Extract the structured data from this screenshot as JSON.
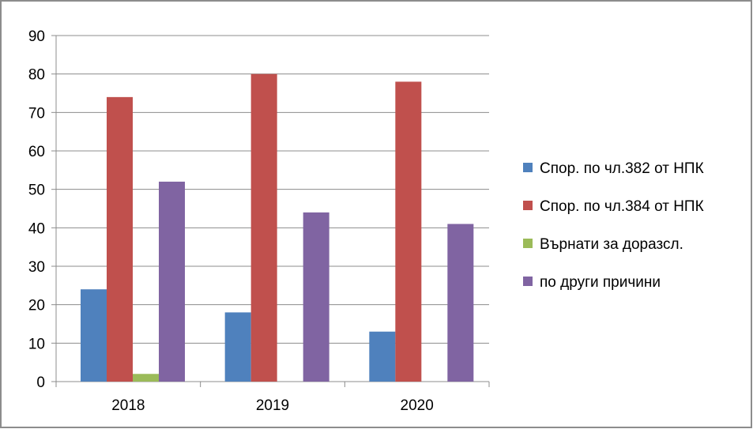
{
  "chart_data": {
    "type": "bar",
    "title": "",
    "xlabel": "",
    "ylabel": "",
    "categories": [
      "2018",
      "2019",
      "2020"
    ],
    "ylim": [
      0,
      90
    ],
    "yticks": [
      0,
      10,
      20,
      30,
      40,
      50,
      60,
      70,
      80,
      90
    ],
    "grid": true,
    "legend_position": "right",
    "series": [
      {
        "name": "Спор. по чл.382 от НПК",
        "color": "#4F81BD",
        "values": [
          24,
          18,
          13
        ]
      },
      {
        "name": "Спор. по чл.384 от НПК",
        "color": "#C0504D",
        "values": [
          74,
          80,
          78
        ]
      },
      {
        "name": "Върнати за доразсл.",
        "color": "#9BBB59",
        "values": [
          2,
          0,
          0
        ]
      },
      {
        "name": "по други причини",
        "color": "#8064A2",
        "values": [
          52,
          44,
          41
        ]
      }
    ]
  }
}
